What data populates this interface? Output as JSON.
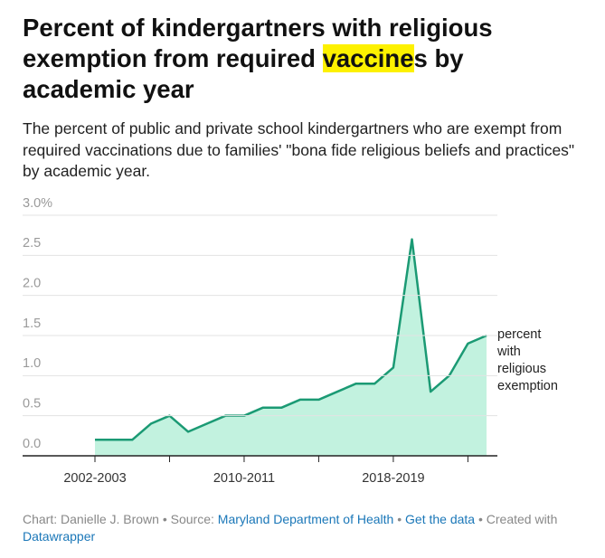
{
  "chart_data": {
    "type": "area",
    "title": "Percent of kindergartners with religious exemption from required vaccines by academic year",
    "title_highlight": "vaccine",
    "subtitle": "The percent of public and private school kindergartners who are exempt from required vaccinations due to families' \"bona fide religious beliefs and practices\" by academic year.",
    "categories": [
      "2002-2003",
      null,
      null,
      null,
      null,
      null,
      null,
      null,
      "2010-2011",
      null,
      null,
      null,
      null,
      null,
      null,
      null,
      "2018-2019",
      null,
      null,
      null,
      null,
      null
    ],
    "series": [
      {
        "name": "percent with religious exemption",
        "color": "#1b9a74",
        "fill": "#c2f2df",
        "values": [
          0.2,
          0.2,
          0.2,
          0.4,
          0.5,
          0.3,
          0.4,
          0.5,
          0.5,
          0.6,
          0.6,
          0.7,
          0.7,
          0.8,
          0.9,
          0.9,
          1.1,
          2.7,
          0.8,
          1.0,
          1.4,
          1.5
        ]
      }
    ],
    "ylim": [
      0,
      3
    ],
    "yticks": [
      {
        "value": 0,
        "label": "0.0"
      },
      0.5,
      {
        "value": 1,
        "label": "1.0"
      },
      1.5,
      {
        "value": 2,
        "label": "2.0"
      },
      2.5,
      {
        "value": 3,
        "label": "3.0%"
      }
    ],
    "grid": true,
    "footer": [
      {
        "text": "Chart: Danielle J. Brown • Source: "
      },
      {
        "text": "Maryland Department of Health",
        "link": true
      },
      {
        "text": "  • "
      },
      {
        "text": "Get the data",
        "link": true
      },
      {
        "text": " • Created with "
      },
      {
        "text": "Datawrapper",
        "link": true
      }
    ]
  }
}
